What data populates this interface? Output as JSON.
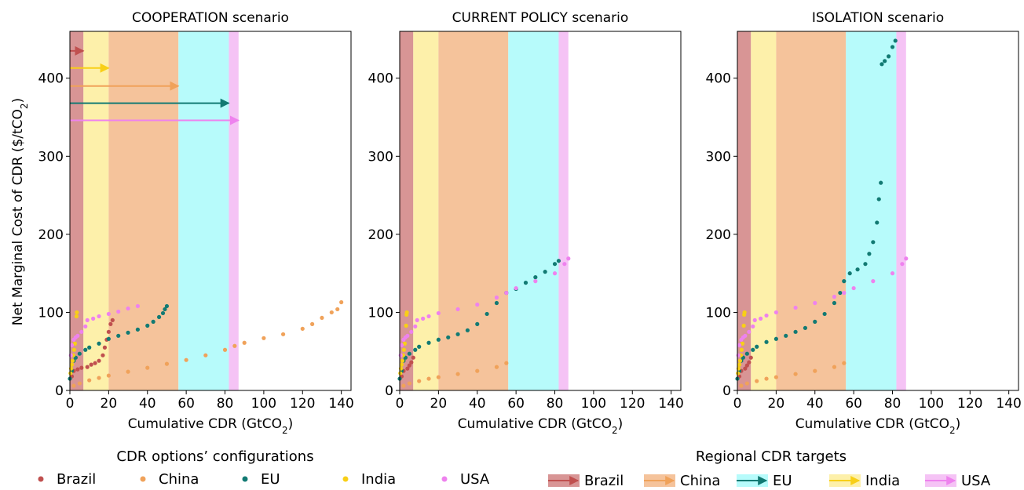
{
  "colors": {
    "Brazil": "#c0504f",
    "China": "#f0a25a",
    "EU": "#127a73",
    "India": "#f8cf17",
    "USA": "#ee82ee",
    "band_Brazil": "#d89595",
    "band_India": "#fdf0aa",
    "band_China": "#f5c39b",
    "band_EU": "#b7fbfb",
    "band_USA": "#f5c3f5"
  },
  "shared": {
    "ylabel": "Net Marginal Cost of CDR ($/tCO",
    "ylabel_sub": "2",
    "ylabel_end": ")",
    "xlabel": "Cumulative CDR (GtCO",
    "xlabel_sub": "2",
    "xlabel_end": ")",
    "xlim": [
      0,
      145
    ],
    "ylim": [
      0,
      460
    ],
    "xticks": [
      0,
      20,
      40,
      60,
      80,
      100,
      120,
      140
    ],
    "yticks": [
      0,
      100,
      200,
      300,
      400
    ],
    "target_bands": [
      {
        "region": "Brazil",
        "from": 0,
        "to": 7
      },
      {
        "region": "India",
        "from": 7,
        "to": 20
      },
      {
        "region": "China",
        "from": 20,
        "to": 56
      },
      {
        "region": "EU",
        "from": 56,
        "to": 82
      },
      {
        "region": "USA",
        "from": 82,
        "to": 87
      }
    ]
  },
  "legends": {
    "options_title": "CDR options’ configurations",
    "options": [
      "Brazil",
      "China",
      "EU",
      "India",
      "USA"
    ],
    "targets_title": "Regional CDR targets",
    "targets": [
      "Brazil",
      "China",
      "EU",
      "India",
      "USA"
    ]
  },
  "chart_data": [
    {
      "type": "scatter",
      "title": "COOPERATION scenario",
      "arrows": [
        {
          "region": "Brazil",
          "y": 435,
          "to": 7
        },
        {
          "region": "India",
          "y": 413,
          "to": 20
        },
        {
          "region": "China",
          "y": 390,
          "to": 56
        },
        {
          "region": "EU",
          "y": 368,
          "to": 82
        },
        {
          "region": "USA",
          "y": 346,
          "to": 87
        }
      ],
      "series": [
        {
          "name": "Brazil",
          "points": [
            [
              1,
              18
            ],
            [
              2,
              25
            ],
            [
              4,
              27
            ],
            [
              6,
              29
            ],
            [
              9,
              30
            ],
            [
              11,
              33
            ],
            [
              13,
              35
            ],
            [
              15,
              38
            ],
            [
              17,
              45
            ],
            [
              18,
              55
            ],
            [
              19,
              65
            ],
            [
              20,
              75
            ],
            [
              21,
              85
            ],
            [
              22,
              90
            ]
          ]
        },
        {
          "name": "China",
          "points": [
            [
              2,
              6
            ],
            [
              5,
              9
            ],
            [
              10,
              13
            ],
            [
              15,
              16
            ],
            [
              20,
              19
            ],
            [
              30,
              24
            ],
            [
              40,
              29
            ],
            [
              50,
              34
            ],
            [
              60,
              39
            ],
            [
              70,
              45
            ],
            [
              80,
              52
            ],
            [
              85,
              57
            ],
            [
              90,
              61
            ],
            [
              100,
              67
            ],
            [
              110,
              72
            ],
            [
              120,
              79
            ],
            [
              125,
              85
            ],
            [
              130,
              93
            ],
            [
              135,
              100
            ],
            [
              138,
              104
            ],
            [
              140,
              113
            ]
          ]
        },
        {
          "name": "EU",
          "points": [
            [
              0,
              15
            ],
            [
              1,
              25
            ],
            [
              2,
              38
            ],
            [
              3,
              42
            ],
            [
              5,
              47
            ],
            [
              8,
              52
            ],
            [
              10,
              55
            ],
            [
              15,
              60
            ],
            [
              20,
              66
            ],
            [
              25,
              70
            ],
            [
              30,
              74
            ],
            [
              35,
              78
            ],
            [
              40,
              83
            ],
            [
              43,
              88
            ],
            [
              46,
              94
            ],
            [
              48,
              99
            ],
            [
              49,
              104
            ],
            [
              50,
              108
            ]
          ]
        },
        {
          "name": "India",
          "points": [
            [
              0.3,
              22
            ],
            [
              0.6,
              28
            ],
            [
              1,
              33
            ],
            [
              1.4,
              38
            ],
            [
              1.8,
              45
            ],
            [
              2.2,
              52
            ],
            [
              2.6,
              60
            ],
            [
              3.4,
              95
            ],
            [
              3.6,
              100
            ]
          ]
        },
        {
          "name": "USA",
          "points": [
            [
              0.5,
              45
            ],
            [
              1,
              58
            ],
            [
              2,
              65
            ],
            [
              3,
              68
            ],
            [
              4,
              70
            ],
            [
              6,
              75
            ],
            [
              8,
              82
            ],
            [
              9,
              90
            ],
            [
              12,
              92
            ],
            [
              15,
              95
            ],
            [
              20,
              98
            ],
            [
              25,
              101
            ],
            [
              30,
              105
            ],
            [
              35,
              108
            ]
          ]
        }
      ]
    },
    {
      "type": "scatter",
      "title": "CURRENT POLICY scenario",
      "series": [
        {
          "name": "Brazil",
          "points": [
            [
              1,
              18
            ],
            [
              2,
              25
            ],
            [
              4,
              28
            ],
            [
              5,
              32
            ],
            [
              6,
              36
            ],
            [
              7,
              42
            ]
          ]
        },
        {
          "name": "China",
          "points": [
            [
              2,
              6
            ],
            [
              5,
              9
            ],
            [
              10,
              12
            ],
            [
              15,
              15
            ],
            [
              20,
              17
            ],
            [
              30,
              21
            ],
            [
              40,
              25
            ],
            [
              50,
              30
            ],
            [
              55,
              35
            ]
          ]
        },
        {
          "name": "EU",
          "points": [
            [
              0,
              15
            ],
            [
              1,
              25
            ],
            [
              2,
              38
            ],
            [
              3,
              42
            ],
            [
              5,
              47
            ],
            [
              8,
              52
            ],
            [
              10,
              56
            ],
            [
              15,
              61
            ],
            [
              20,
              65
            ],
            [
              25,
              68
            ],
            [
              30,
              72
            ],
            [
              35,
              77
            ],
            [
              40,
              85
            ],
            [
              45,
              98
            ],
            [
              50,
              112
            ],
            [
              55,
              125
            ],
            [
              60,
              130
            ],
            [
              65,
              138
            ],
            [
              70,
              145
            ],
            [
              75,
              152
            ],
            [
              80,
              162
            ],
            [
              82,
              166
            ]
          ]
        },
        {
          "name": "India",
          "points": [
            [
              0.3,
              22
            ],
            [
              0.6,
              28
            ],
            [
              1,
              33
            ],
            [
              1.4,
              38
            ],
            [
              1.8,
              45
            ],
            [
              2.2,
              52
            ],
            [
              2.6,
              60
            ],
            [
              3.3,
              83
            ],
            [
              3.5,
              97
            ],
            [
              3.7,
              100
            ]
          ]
        },
        {
          "name": "USA",
          "points": [
            [
              0.5,
              45
            ],
            [
              1,
              58
            ],
            [
              2,
              65
            ],
            [
              3,
              68
            ],
            [
              4,
              70
            ],
            [
              6,
              75
            ],
            [
              8,
              82
            ],
            [
              9,
              90
            ],
            [
              12,
              92
            ],
            [
              15,
              95
            ],
            [
              20,
              99
            ],
            [
              30,
              104
            ],
            [
              40,
              110
            ],
            [
              50,
              119
            ],
            [
              55,
              125
            ],
            [
              60,
              131
            ],
            [
              70,
              140
            ],
            [
              80,
              150
            ],
            [
              85,
              162
            ],
            [
              87,
              169
            ]
          ]
        }
      ]
    },
    {
      "type": "scatter",
      "title": "ISOLATION scenario",
      "series": [
        {
          "name": "Brazil",
          "points": [
            [
              1,
              18
            ],
            [
              2,
              25
            ],
            [
              4,
              28
            ],
            [
              5,
              32
            ],
            [
              6,
              36
            ],
            [
              7,
              42
            ]
          ]
        },
        {
          "name": "China",
          "points": [
            [
              2,
              6
            ],
            [
              5,
              9
            ],
            [
              10,
              12
            ],
            [
              15,
              15
            ],
            [
              20,
              17
            ],
            [
              30,
              21
            ],
            [
              40,
              25
            ],
            [
              50,
              30
            ],
            [
              55,
              35
            ]
          ]
        },
        {
          "name": "EU",
          "points": [
            [
              0,
              15
            ],
            [
              1,
              25
            ],
            [
              2,
              38
            ],
            [
              3,
              42
            ],
            [
              5,
              47
            ],
            [
              8,
              52
            ],
            [
              10,
              56
            ],
            [
              15,
              62
            ],
            [
              20,
              66
            ],
            [
              25,
              70
            ],
            [
              30,
              75
            ],
            [
              35,
              80
            ],
            [
              40,
              88
            ],
            [
              45,
              98
            ],
            [
              50,
              112
            ],
            [
              53,
              125
            ],
            [
              55,
              140
            ],
            [
              58,
              150
            ],
            [
              62,
              155
            ],
            [
              66,
              162
            ],
            [
              68,
              175
            ],
            [
              70,
              190
            ],
            [
              72,
              215
            ],
            [
              73,
              245
            ],
            [
              74,
              266
            ],
            [
              74.5,
              418
            ],
            [
              76,
              422
            ],
            [
              78,
              428
            ],
            [
              80,
              440
            ],
            [
              81.5,
              448
            ]
          ]
        },
        {
          "name": "India",
          "points": [
            [
              0.3,
              22
            ],
            [
              0.6,
              28
            ],
            [
              1,
              33
            ],
            [
              1.4,
              38
            ],
            [
              1.8,
              45
            ],
            [
              2.2,
              52
            ],
            [
              2.6,
              60
            ],
            [
              3.3,
              83
            ],
            [
              3.5,
              97
            ],
            [
              3.7,
              100
            ]
          ]
        },
        {
          "name": "USA",
          "points": [
            [
              0.5,
              45
            ],
            [
              1,
              58
            ],
            [
              2,
              65
            ],
            [
              3,
              68
            ],
            [
              4,
              70
            ],
            [
              6,
              75
            ],
            [
              8,
              82
            ],
            [
              9,
              90
            ],
            [
              12,
              92
            ],
            [
              15,
              96
            ],
            [
              20,
              100
            ],
            [
              30,
              106
            ],
            [
              40,
              112
            ],
            [
              50,
              120
            ],
            [
              55,
              125
            ],
            [
              60,
              131
            ],
            [
              70,
              140
            ],
            [
              80,
              150
            ],
            [
              85,
              162
            ],
            [
              87,
              169
            ]
          ]
        }
      ]
    }
  ]
}
